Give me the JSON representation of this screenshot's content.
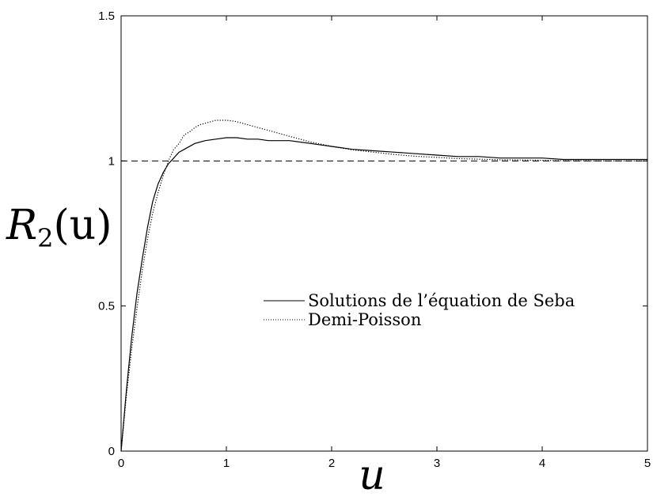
{
  "chart_data": {
    "type": "line",
    "xlabel": "u",
    "ylabel_main": "R",
    "ylabel_sub": "2",
    "ylabel_arg": "(u)",
    "xlim": [
      0,
      5
    ],
    "ylim": [
      0,
      1.5
    ],
    "xticks": [
      {
        "value": 0,
        "label": "0"
      },
      {
        "value": 1,
        "label": "1"
      },
      {
        "value": 2,
        "label": "2"
      },
      {
        "value": 3,
        "label": "3"
      },
      {
        "value": 4,
        "label": "4"
      },
      {
        "value": 5,
        "label": "5"
      }
    ],
    "yticks": [
      {
        "value": 0,
        "label": "0"
      },
      {
        "value": 0.5,
        "label": "0.5"
      },
      {
        "value": 1,
        "label": "1"
      },
      {
        "value": 1.5,
        "label": "1.5"
      }
    ],
    "grid": false,
    "legend_position": "center-right",
    "reference_line": {
      "y": 1,
      "style": "dashed"
    },
    "series": [
      {
        "name": "Solutions de l’équation de Seba",
        "style": "solid",
        "color": "#000000",
        "x": [
          0,
          0.05,
          0.1,
          0.15,
          0.2,
          0.25,
          0.3,
          0.35,
          0.4,
          0.45,
          0.5,
          0.55,
          0.6,
          0.7,
          0.8,
          0.9,
          1.0,
          1.1,
          1.2,
          1.3,
          1.4,
          1.5,
          1.6,
          1.7,
          1.8,
          1.9,
          2.0,
          2.2,
          2.4,
          2.6,
          2.8,
          3.0,
          3.2,
          3.4,
          3.6,
          3.8,
          4.0,
          4.2,
          4.4,
          4.6,
          4.8,
          5.0
        ],
        "y": [
          0.0,
          0.21,
          0.39,
          0.54,
          0.66,
          0.77,
          0.86,
          0.92,
          0.96,
          0.99,
          1.01,
          1.03,
          1.04,
          1.06,
          1.07,
          1.075,
          1.08,
          1.08,
          1.075,
          1.075,
          1.07,
          1.07,
          1.07,
          1.065,
          1.06,
          1.055,
          1.05,
          1.04,
          1.035,
          1.03,
          1.025,
          1.02,
          1.015,
          1.015,
          1.01,
          1.01,
          1.01,
          1.005,
          1.005,
          1.005,
          1.005,
          1.005
        ]
      },
      {
        "name": "Demi-Poisson",
        "style": "dotted",
        "color": "#000000",
        "x": [
          0,
          0.05,
          0.1,
          0.15,
          0.2,
          0.25,
          0.3,
          0.35,
          0.4,
          0.45,
          0.5,
          0.55,
          0.6,
          0.65,
          0.7,
          0.75,
          0.8,
          0.85,
          0.9,
          0.95,
          1.0,
          1.05,
          1.1,
          1.2,
          1.3,
          1.4,
          1.5,
          1.6,
          1.7,
          1.8,
          1.9,
          2.0,
          2.2,
          2.4,
          2.6,
          2.8,
          3.0,
          3.2,
          3.4,
          3.6,
          3.8,
          4.0,
          4.2,
          4.4,
          4.6,
          4.8,
          5.0
        ],
        "y": [
          0.0,
          0.19,
          0.35,
          0.49,
          0.62,
          0.73,
          0.82,
          0.89,
          0.95,
          1.0,
          1.04,
          1.06,
          1.09,
          1.1,
          1.115,
          1.125,
          1.13,
          1.135,
          1.14,
          1.14,
          1.14,
          1.138,
          1.135,
          1.125,
          1.115,
          1.105,
          1.095,
          1.085,
          1.075,
          1.065,
          1.058,
          1.05,
          1.038,
          1.03,
          1.022,
          1.016,
          1.012,
          1.008,
          1.006,
          1.004,
          1.003,
          1.002,
          1.001,
          1.001,
          1.0,
          1.0,
          1.0
        ]
      }
    ]
  }
}
